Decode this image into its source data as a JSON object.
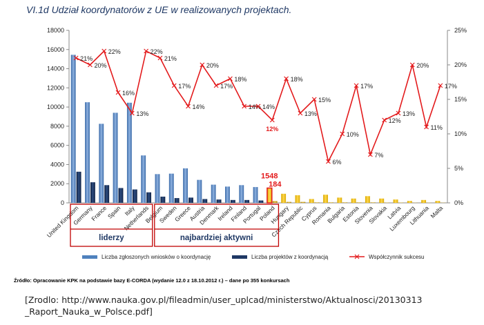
{
  "chart_data": {
    "type": "bar",
    "title": "VI.1d Udział koordynatorów z UE  w realizowanych projektach.",
    "categories": [
      "United Kingdom",
      "Germany",
      "France",
      "Spain",
      "Italy",
      "Netherlands",
      "Belgium",
      "Sweden",
      "Greece",
      "Austria",
      "Denmark",
      "Ireland",
      "Finland",
      "Portugal",
      "Poland",
      "Hungary",
      "Czech Republic",
      "Cyprus",
      "Romania",
      "Bulgaria",
      "Estonia",
      "Slovenia",
      "Slovakia",
      "Latvia",
      "Luxembourg",
      "Lithuania",
      "Malta"
    ],
    "series": [
      {
        "name": "Liczba zgłoszonych wniosków o koordynację",
        "type": "bar",
        "axis": "left",
        "color": "#4f81bd",
        "values": [
          15450,
          10500,
          8250,
          9400,
          10450,
          4950,
          3000,
          3050,
          3600,
          2400,
          1900,
          1700,
          1850,
          1650,
          1548,
          950,
          800,
          400,
          850,
          550,
          450,
          700,
          450,
          350,
          200,
          300,
          200
        ]
      },
      {
        "name": "Liczba projektów z koordynacją",
        "type": "bar",
        "axis": "left",
        "color": "#1f3864",
        "values": [
          3250,
          2150,
          1850,
          1550,
          1400,
          1100,
          650,
          500,
          550,
          400,
          350,
          300,
          300,
          250,
          184,
          100,
          100,
          50,
          50,
          50,
          50,
          50,
          30,
          30,
          20,
          20,
          20
        ]
      },
      {
        "name": "Współczynnik sukcesu",
        "type": "line",
        "axis": "right",
        "color": "#e31a1c",
        "values": [
          21,
          20,
          22,
          16,
          13,
          22,
          21,
          17,
          14,
          20,
          17,
          18,
          14,
          14,
          12,
          18,
          13,
          15,
          6,
          10,
          17,
          7,
          12,
          13,
          20,
          11,
          17
        ]
      }
    ],
    "y_left": {
      "min": 0,
      "max": 18000,
      "ticks": [
        "0",
        "2000",
        "4000",
        "6000",
        "8000",
        "10000",
        "12000",
        "14000",
        "16000",
        "18000"
      ]
    },
    "y_right": {
      "min": 0,
      "max": 25,
      "ticks": [
        "0%",
        "5%",
        "10%",
        "15%",
        "20%",
        "25%"
      ]
    },
    "highlight": {
      "category": "Poland",
      "wnioski_label": "1548",
      "projekty_label": "184"
    },
    "groups": [
      {
        "label": "liderzy",
        "from": 0,
        "to": 6
      },
      {
        "label": "najbardziej aktywni",
        "from": 6,
        "to": 15
      }
    ],
    "legend": [
      "Liczba zgłoszonych wniosków o koordynację",
      "Liczba projektów z koordynacją",
      "Współczynnik sukcesu"
    ],
    "legend_position": "bottom",
    "grid": false
  },
  "source_note": "Źródło: Opracowanie KPK na podstawie bazy E-CORDA (wydanie 12.0 z 18.10.2012 r.) – dane po 355 konkursach",
  "citation": {
    "line1": "[Zrodlo: http://www.nauka.gov.pl/fileadmin/user_uplcad/ministerstwo/Aktualnosci/20130313",
    "line2": "_Raport_Nauka_w_Polsce.pdf]"
  }
}
